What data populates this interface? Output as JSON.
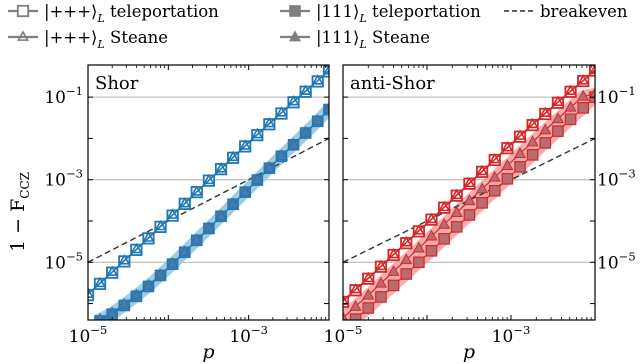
{
  "figure": {
    "ylabel": "1 − F",
    "ylabel_sub": "CCZ",
    "legend": {
      "placement": "top",
      "items": [
        {
          "id": "plus-tele",
          "label": "|+++⟩",
          "sub": "L",
          "suffix": " teleportation",
          "marker": "square-open",
          "color": "#1f77b4"
        },
        {
          "id": "one-tele",
          "label": "|111⟩",
          "sub": "L",
          "suffix": " teleportation",
          "marker": "square-filled",
          "color": "#1f77b4"
        },
        {
          "id": "breakeven",
          "label": "breakeven",
          "sub": "",
          "suffix": "",
          "marker": "dashed",
          "color": "#333333"
        },
        {
          "id": "plus-steane",
          "label": "|+++⟩",
          "sub": "L",
          "suffix": " Steane",
          "marker": "triangle-open",
          "color": "#1f77b4"
        },
        {
          "id": "one-steane",
          "label": "|111⟩",
          "sub": "L",
          "suffix": " Steane",
          "marker": "triangle-filled",
          "color": "#1f77b4"
        }
      ]
    }
  },
  "chart_data": [
    {
      "type": "line",
      "title": "Shor",
      "xlabel": "p",
      "ylabel": "1 − F_CCZ",
      "xscale": "log",
      "yscale": "log",
      "xlim": [
        1e-05,
        0.01
      ],
      "ylim": [
        4e-07,
        0.6
      ],
      "xticks": [
        {
          "v": 1e-05,
          "mant": "10",
          "exp": "−5"
        },
        {
          "v": 0.001,
          "mant": "10",
          "exp": "−3"
        }
      ],
      "yticks": [
        {
          "v": 0.1,
          "mant": "10",
          "exp": "−1"
        },
        {
          "v": 0.001,
          "mant": "10",
          "exp": "−3"
        },
        {
          "v": 1e-05,
          "mant": "10",
          "exp": "−5"
        }
      ],
      "ytick_side": "left",
      "grid": "horizontal",
      "colors": {
        "line": "#1f77b4",
        "band": "#9ecae1",
        "fill": "#4a7aa8",
        "edge": "#1f77b4"
      },
      "series": [
        {
          "name": "|+++⟩_L teleportation",
          "marker": "square-open",
          "band": false,
          "x": [
            1e-05,
            1.41e-05,
            2e-05,
            2.83e-05,
            4e-05,
            5.66e-05,
            8e-05,
            0.000113,
            0.00016,
            0.000226,
            0.00032,
            0.000453,
            0.00064,
            0.000905,
            0.00128,
            0.00181,
            0.00256,
            0.00362,
            0.00512,
            0.00724,
            0.01
          ],
          "y": [
            1.6e-06,
            3e-06,
            5.6e-06,
            1.05e-05,
            2e-05,
            3.8e-05,
            7.2e-05,
            0.000135,
            0.00026,
            0.0005,
            0.00095,
            0.0018,
            0.0034,
            0.0064,
            0.012,
            0.022,
            0.04,
            0.075,
            0.135,
            0.24,
            0.42
          ]
        },
        {
          "name": "|+++⟩_L Steane",
          "marker": "triangle-open",
          "band": false,
          "x": [
            1e-05,
            1.41e-05,
            2e-05,
            2.83e-05,
            4e-05,
            5.66e-05,
            8e-05,
            0.000113,
            0.00016,
            0.000226,
            0.00032,
            0.000453,
            0.00064,
            0.000905,
            0.00128,
            0.00181,
            0.00256,
            0.00362,
            0.00512,
            0.00724,
            0.01
          ],
          "y": [
            1.7e-06,
            3.1e-06,
            5.8e-06,
            1.1e-05,
            2.05e-05,
            3.9e-05,
            7.4e-05,
            0.00014,
            0.000265,
            0.00051,
            0.00097,
            0.00185,
            0.0035,
            0.0066,
            0.0125,
            0.023,
            0.042,
            0.078,
            0.14,
            0.25,
            0.44
          ]
        },
        {
          "name": "|111⟩_L teleportation",
          "marker": "square-filled",
          "band": true,
          "x": [
            1.41e-05,
            2e-05,
            2.83e-05,
            4e-05,
            5.66e-05,
            8e-05,
            0.000113,
            0.00016,
            0.000226,
            0.00032,
            0.000453,
            0.00064,
            0.000905,
            0.00128,
            0.00181,
            0.00256,
            0.00362,
            0.00512,
            0.00724,
            0.01
          ],
          "y": [
            3.8e-07,
            5.5e-07,
            9e-07,
            1.5e-06,
            2.6e-06,
            4.8e-06,
            9e-06,
            1.75e-05,
            3.4e-05,
            6.6e-05,
            0.00013,
            0.000255,
            0.0005,
            0.00098,
            0.0019,
            0.0037,
            0.007,
            0.0135,
            0.026,
            0.05
          ]
        },
        {
          "name": "|111⟩_L Steane",
          "marker": "triangle-filled",
          "band": true,
          "x": [
            1.41e-05,
            2e-05,
            2.83e-05,
            4e-05,
            5.66e-05,
            8e-05,
            0.000113,
            0.00016,
            0.000226,
            0.00032,
            0.000453,
            0.00064,
            0.000905,
            0.00128,
            0.00181,
            0.00256,
            0.00362,
            0.00512,
            0.00724,
            0.01
          ],
          "y": [
            4.2e-07,
            6e-07,
            9.6e-07,
            1.6e-06,
            2.75e-06,
            5e-06,
            9.4e-06,
            1.8e-05,
            3.5e-05,
            6.8e-05,
            0.000133,
            0.00026,
            0.00051,
            0.001,
            0.00195,
            0.0038,
            0.0072,
            0.014,
            0.027,
            0.052
          ]
        },
        {
          "name": "breakeven",
          "marker": "dashed",
          "band": false,
          "x": [
            1e-05,
            0.01
          ],
          "y": [
            1e-05,
            0.01
          ]
        }
      ]
    },
    {
      "type": "line",
      "title": "anti-Shor",
      "xlabel": "p",
      "ylabel": "",
      "xscale": "log",
      "yscale": "log",
      "xlim": [
        1e-05,
        0.01
      ],
      "ylim": [
        4e-07,
        0.6
      ],
      "xticks": [
        {
          "v": 1e-05,
          "mant": "10",
          "exp": "−5"
        },
        {
          "v": 0.001,
          "mant": "10",
          "exp": "−3"
        }
      ],
      "yticks": [
        {
          "v": 0.1,
          "mant": "10",
          "exp": "−1"
        },
        {
          "v": 0.001,
          "mant": "10",
          "exp": "−3"
        },
        {
          "v": 1e-05,
          "mant": "10",
          "exp": "−5"
        }
      ],
      "ytick_side": "right",
      "grid": "horizontal",
      "colors": {
        "line": "#d62728",
        "band": "#f2a0a0",
        "fill": "#b96b70",
        "edge": "#d62728"
      },
      "series": [
        {
          "name": "|+++⟩_L teleportation",
          "marker": "square-open",
          "band": false,
          "x": [
            1e-05,
            1.41e-05,
            2e-05,
            2.83e-05,
            4e-05,
            5.66e-05,
            8e-05,
            0.000113,
            0.00016,
            0.000226,
            0.00032,
            0.000453,
            0.00064,
            0.000905,
            0.00128,
            0.00181,
            0.00256,
            0.00362,
            0.00512,
            0.00724,
            0.01
          ],
          "y": [
            1.1e-06,
            2.1e-06,
            4e-06,
            7.8e-06,
            1.5e-05,
            2.9e-05,
            5.6e-05,
            0.000108,
            0.00021,
            0.00041,
            0.0008,
            0.00155,
            0.003,
            0.0058,
            0.011,
            0.021,
            0.039,
            0.073,
            0.135,
            0.245,
            0.44
          ]
        },
        {
          "name": "|+++⟩_L Steane",
          "marker": "triangle-open",
          "band": false,
          "x": [
            1e-05,
            1.41e-05,
            2e-05,
            2.83e-05,
            4e-05,
            5.66e-05,
            8e-05,
            0.000113,
            0.00016,
            0.000226,
            0.00032,
            0.000453,
            0.00064,
            0.000905,
            0.00128,
            0.00181,
            0.00256,
            0.00362,
            0.00512,
            0.00724,
            0.01
          ],
          "y": [
            1.15e-06,
            2.2e-06,
            4.1e-06,
            8e-06,
            1.55e-05,
            3e-05,
            5.8e-05,
            0.00011,
            0.000215,
            0.00042,
            0.00082,
            0.0016,
            0.0031,
            0.006,
            0.0115,
            0.022,
            0.041,
            0.076,
            0.14,
            0.25,
            0.45
          ]
        },
        {
          "name": "|111⟩_L teleportation",
          "marker": "square-filled",
          "band": true,
          "x": [
            1.41e-05,
            2e-05,
            2.83e-05,
            4e-05,
            5.66e-05,
            8e-05,
            0.000113,
            0.00016,
            0.000226,
            0.00032,
            0.000453,
            0.00064,
            0.000905,
            0.00128,
            0.00181,
            0.00256,
            0.00362,
            0.00512,
            0.00724,
            0.01
          ],
          "y": [
            4.2e-07,
            7.8e-07,
            1.45e-06,
            2.75e-06,
            5.2e-06,
            1e-05,
            1.9e-05,
            3.7e-05,
            7.2e-05,
            0.00014,
            0.000275,
            0.00054,
            0.00105,
            0.00205,
            0.004,
            0.0078,
            0.015,
            0.029,
            0.055,
            0.1
          ]
        },
        {
          "name": "|111⟩_L Steane",
          "marker": "triangle-filled",
          "band": true,
          "x": [
            1e-05,
            1.41e-05,
            2e-05,
            2.83e-05,
            4e-05,
            5.66e-05,
            8e-05,
            0.000113,
            0.00016,
            0.000226,
            0.00032,
            0.000453,
            0.00064,
            0.000905,
            0.00128,
            0.00181,
            0.00256,
            0.00362,
            0.00512,
            0.00724,
            0.01
          ],
          "y": [
            4.5e-07,
            8.5e-07,
            1.6e-06,
            3.1e-06,
            6e-06,
            1.15e-05,
            2.2e-05,
            4.3e-05,
            8.3e-05,
            0.00016,
            0.00031,
            0.0006,
            0.00115,
            0.0022,
            0.0043,
            0.0082,
            0.016,
            0.03,
            0.057,
            0.105,
            0.12
          ]
        },
        {
          "name": "breakeven",
          "marker": "dashed",
          "band": false,
          "x": [
            1e-05,
            0.01
          ],
          "y": [
            1e-05,
            0.01
          ]
        }
      ]
    }
  ]
}
